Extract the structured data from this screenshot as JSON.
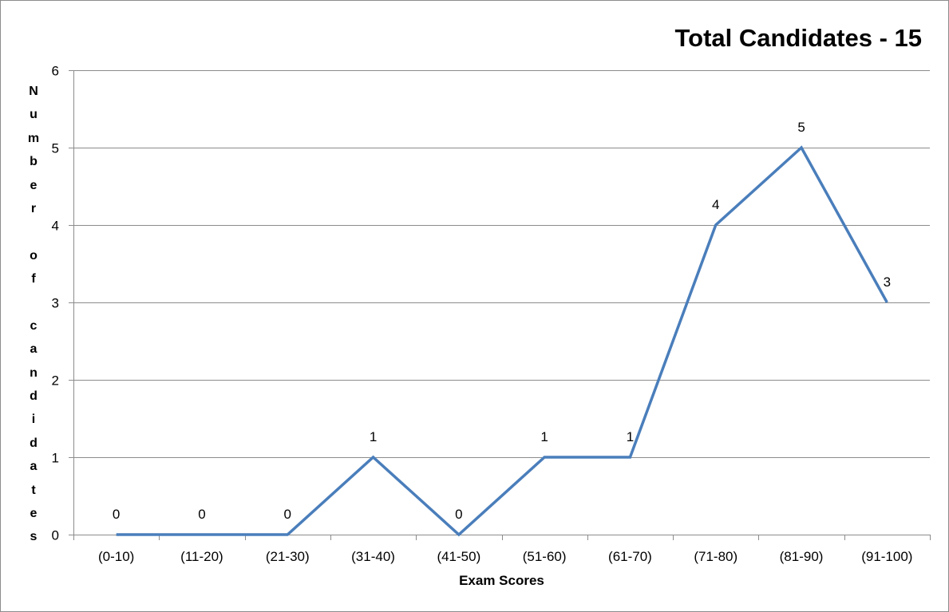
{
  "chart_data": {
    "type": "line",
    "title": "Total Candidates - 15",
    "xlabel": "Exam Scores",
    "ylabel": "Number of candidates",
    "categories": [
      "(0-10)",
      "(11-20)",
      "(21-30)",
      "(31-40)",
      "(41-50)",
      "(51-60)",
      "(61-70)",
      "(71-80)",
      "(81-90)",
      "(91-100)"
    ],
    "series": [
      {
        "values": [
          0,
          0,
          0,
          1,
          0,
          1,
          1,
          4,
          5,
          3
        ]
      }
    ],
    "ylim": [
      0,
      6
    ],
    "yticks": [
      "0",
      "1",
      "2",
      "3",
      "4",
      "5",
      "6"
    ],
    "grid": true,
    "legend": "none",
    "data_labels": true,
    "colors": {
      "line": "#4a7ebb",
      "grid": "#8c8c8c",
      "axis": "#8c8c8c"
    }
  }
}
